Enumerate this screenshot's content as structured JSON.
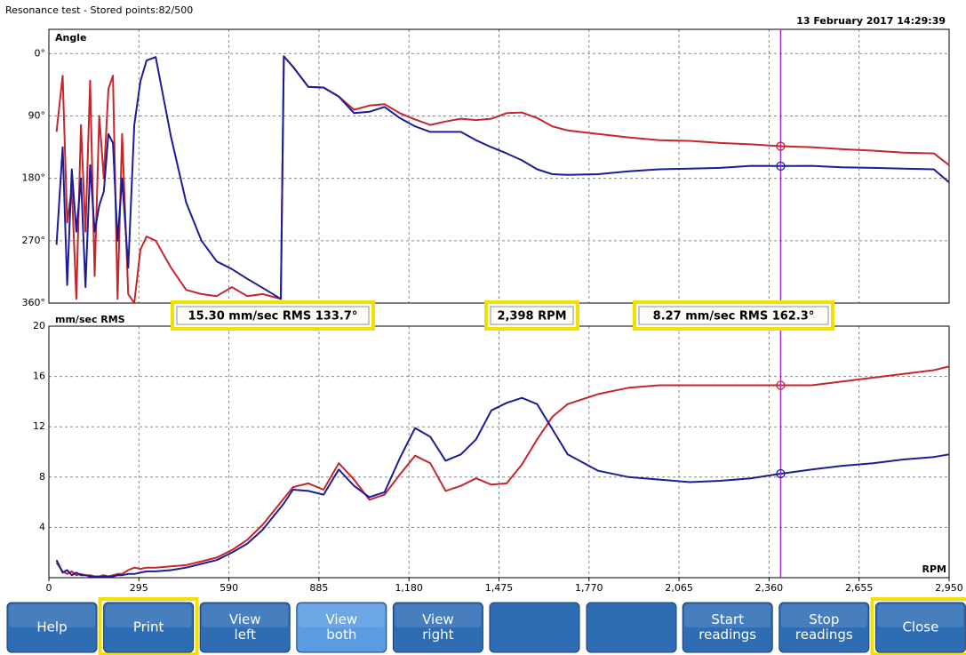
{
  "window_title": "Resonance test - Stored points:82/500",
  "chart_data": [
    {
      "type": "line",
      "ylabel": "Angle",
      "annotation": "13 February 2017 14:29:39",
      "x": [
        25,
        45,
        60,
        75,
        90,
        105,
        120,
        135,
        150,
        165,
        180,
        195,
        210,
        225,
        240,
        260,
        280,
        300,
        320,
        350,
        400,
        450,
        500,
        550,
        600,
        650,
        700,
        760,
        770,
        800,
        850,
        900,
        950,
        1000,
        1050,
        1100,
        1150,
        1200,
        1250,
        1300,
        1350,
        1400,
        1450,
        1500,
        1550,
        1600,
        1650,
        1700,
        1800,
        1900,
        2000,
        2100,
        2200,
        2300,
        2398,
        2500,
        2600,
        2700,
        2800,
        2900,
        2950
      ],
      "series": [
        {
          "name": "Left",
          "color": "#c4262c",
          "values": [
            113,
            32,
            244,
            193,
            354,
            103,
            257,
            39,
            321,
            90,
            180,
            51,
            32,
            354,
            116,
            347,
            360,
            283,
            264,
            270,
            309,
            341,
            347,
            350,
            337,
            350,
            347,
            354,
            4,
            19,
            48,
            49,
            62,
            81,
            75,
            73,
            86,
            95,
            103,
            98,
            94,
            96,
            94,
            86,
            85,
            93,
            105,
            111,
            116,
            121,
            125,
            126,
            129,
            131,
            133.7,
            135,
            138,
            140,
            143,
            144,
            161
          ]
        },
        {
          "name": "Right",
          "color": "#1c1c96",
          "values": [
            276,
            135,
            334,
            167,
            257,
            180,
            337,
            161,
            257,
            219,
            199,
            116,
            129,
            270,
            180,
            309,
            103,
            40,
            10,
            5,
            120,
            215,
            270,
            300,
            311,
            325,
            338,
            354,
            4,
            19,
            48,
            49,
            62,
            86,
            84,
            77,
            93,
            105,
            113,
            113,
            113,
            125,
            135,
            144,
            154,
            167,
            174,
            175,
            174,
            170,
            167,
            166,
            165,
            162,
            162.3,
            162,
            164,
            165,
            166,
            167,
            186
          ]
        }
      ],
      "xlim": [
        0,
        2950
      ],
      "xticks": [
        0,
        295,
        590,
        885,
        1180,
        1475,
        1770,
        2065,
        2360,
        2655,
        2950
      ],
      "ylim": [
        360,
        -35
      ],
      "yticks": [
        {
          "value": 0,
          "label": "0°"
        },
        {
          "value": 90,
          "label": "90°"
        },
        {
          "value": 180,
          "label": "180°"
        },
        {
          "value": 270,
          "label": "270°"
        },
        {
          "value": 360,
          "label": "360°"
        }
      ],
      "grid": true
    },
    {
      "type": "line",
      "ylabel": "mm/sec RMS",
      "xlabel": "RPM",
      "x": [
        25,
        45,
        60,
        75,
        90,
        105,
        120,
        135,
        150,
        165,
        180,
        195,
        210,
        225,
        240,
        260,
        280,
        300,
        320,
        350,
        400,
        450,
        500,
        550,
        600,
        650,
        700,
        760,
        770,
        800,
        850,
        900,
        950,
        1000,
        1050,
        1100,
        1150,
        1200,
        1250,
        1300,
        1350,
        1400,
        1450,
        1500,
        1550,
        1600,
        1650,
        1700,
        1800,
        1900,
        2000,
        2100,
        2200,
        2300,
        2398,
        2500,
        2600,
        2700,
        2800,
        2900,
        2950
      ],
      "series": [
        {
          "name": "Left",
          "color": "#c4262c",
          "values": [
            1.2,
            0.5,
            0.3,
            0.5,
            0.2,
            0.3,
            0.2,
            0.2,
            0.1,
            0.1,
            0.2,
            0.1,
            0.2,
            0.3,
            0.3,
            0.6,
            0.8,
            0.7,
            0.8,
            0.8,
            0.9,
            1.0,
            1.3,
            1.6,
            2.2,
            3.0,
            4.2,
            6.0,
            6.3,
            7.2,
            7.5,
            7.0,
            9.1,
            7.8,
            6.2,
            6.6,
            8.2,
            9.7,
            9.1,
            6.9,
            7.3,
            7.9,
            7.4,
            7.5,
            9.0,
            11.0,
            12.8,
            13.8,
            14.6,
            15.1,
            15.3,
            15.3,
            15.3,
            15.3,
            15.3,
            15.3,
            15.6,
            15.9,
            16.2,
            16.5,
            16.8
          ]
        },
        {
          "name": "Right",
          "color": "#1c1c96",
          "values": [
            1.4,
            0.4,
            0.6,
            0.2,
            0.4,
            0.2,
            0.2,
            0.1,
            0.1,
            0.1,
            0.1,
            0.1,
            0.1,
            0.2,
            0.2,
            0.3,
            0.3,
            0.4,
            0.5,
            0.5,
            0.6,
            0.8,
            1.1,
            1.4,
            2.0,
            2.7,
            3.8,
            5.6,
            5.9,
            7.0,
            6.9,
            6.6,
            8.6,
            7.3,
            6.4,
            6.8,
            9.5,
            11.9,
            11.2,
            9.3,
            9.8,
            11.0,
            13.3,
            13.9,
            14.3,
            13.8,
            11.8,
            9.8,
            8.5,
            8.0,
            7.8,
            7.6,
            7.7,
            7.9,
            8.27,
            8.6,
            8.9,
            9.1,
            9.4,
            9.6,
            9.8
          ]
        }
      ],
      "xlim": [
        0,
        2950
      ],
      "xticks": [
        0,
        295,
        590,
        885,
        {
          "value": 1180,
          "label": "1,180"
        },
        {
          "value": 1475,
          "label": "1,475"
        },
        {
          "value": 1770,
          "label": "1,770"
        },
        {
          "value": 2065,
          "label": "2,065"
        },
        {
          "value": 2360,
          "label": "2,360"
        },
        {
          "value": 2655,
          "label": "2,655"
        },
        {
          "value": 2950,
          "label": "2,950"
        }
      ],
      "ylim": [
        0,
        20
      ],
      "yticks": [
        4,
        8,
        12,
        16,
        20
      ],
      "grid": true
    }
  ],
  "cursor": {
    "value": 2398,
    "label": "2,398 RPM",
    "color": "#a02cc8"
  },
  "readouts": [
    {
      "label": "15.30 mm/sec RMS 133.7°",
      "amplitude": 15.3,
      "phase": 133.7,
      "color": "#c4262c"
    },
    {
      "label": "8.27 mm/sec RMS 162.3°",
      "amplitude": 8.27,
      "phase": 162.3,
      "color": "#1c1c96"
    }
  ],
  "buttons": [
    {
      "lines": [
        "Help"
      ]
    },
    {
      "lines": [
        "Print"
      ]
    },
    {
      "lines": [
        "View",
        "left"
      ]
    },
    {
      "lines": [
        "View",
        "both"
      ],
      "active": true
    },
    {
      "lines": [
        "View",
        "right"
      ]
    },
    {
      "lines": [
        "Start",
        "readings"
      ]
    },
    {
      "lines": [
        "Stop",
        "readings"
      ]
    },
    {
      "lines": [
        "Close"
      ]
    }
  ]
}
